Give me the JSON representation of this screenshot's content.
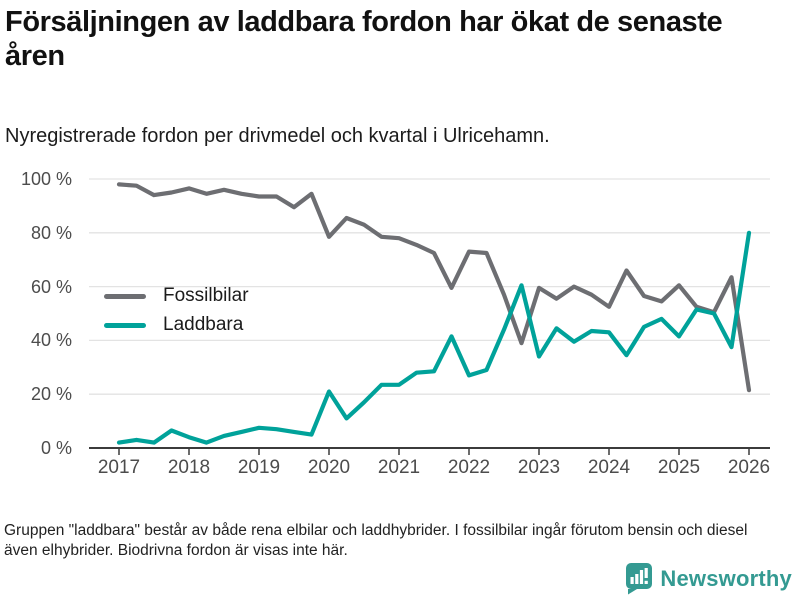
{
  "title": "Försäljningen av laddbara fordon har ökat de senaste åren",
  "subtitle": "Nyregistrerade fordon per drivmedel och kvartal i Ulricehamn.",
  "footnote": "Gruppen \"laddbara\" består av både rena elbilar och laddhybrider. I fossilbilar ingår förutom bensin och diesel även elhybrider. Biodrivna fordon är visas inte här.",
  "brand": {
    "name": "Newsworthy",
    "color": "#349a92",
    "icon": "speech-bubble-bar-chart"
  },
  "colors": {
    "fossil_line": "#6d6e72",
    "laddbara_line": "#00a29a",
    "gridline": "#e3e3e3",
    "axis": "#3b3b3b",
    "tick_text": "#4c4c4c"
  },
  "chart_data": {
    "type": "line",
    "frequency": "quarterly",
    "x_start": "2017 Q1",
    "x_end": "2026 Q1",
    "x_tick_labels": [
      "2017",
      "2018",
      "2019",
      "2020",
      "2021",
      "2022",
      "2023",
      "2024",
      "2025",
      "2026"
    ],
    "y_tick_labels": [
      "0 %",
      "20 %",
      "40 %",
      "60 %",
      "80 %",
      "100 %"
    ],
    "ylabel": "",
    "xlabel": "",
    "ylim": [
      0,
      100
    ],
    "grid": true,
    "legend_position": "inside-left",
    "series": [
      {
        "name": "Fossilbilar",
        "color": "#6d6e72",
        "values": [
          98,
          97.5,
          94,
          95,
          96.5,
          94.5,
          96,
          94.5,
          93.5,
          93.5,
          89.5,
          94.5,
          78.5,
          85.5,
          83,
          78.5,
          78,
          75.5,
          72.5,
          59.5,
          73,
          72.5,
          57,
          39,
          59.5,
          55.5,
          60,
          57,
          52.5,
          66,
          56.5,
          54.5,
          60.5,
          52.5,
          50.5,
          63.5,
          21.5
        ]
      },
      {
        "name": "Laddbara",
        "color": "#00a29a",
        "values": [
          2,
          3,
          2,
          6.5,
          4,
          2,
          4.5,
          6,
          7.5,
          7,
          6,
          5,
          21,
          11,
          17,
          23.5,
          23.5,
          28,
          28.5,
          41.5,
          27,
          29,
          44,
          60.5,
          34,
          44.5,
          39.5,
          43.5,
          43,
          34.5,
          45,
          48,
          41.5,
          51.5,
          50,
          37.5,
          80
        ]
      }
    ]
  }
}
